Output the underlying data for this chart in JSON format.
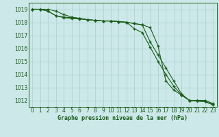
{
  "line1": [
    1019.0,
    1019.0,
    1019.0,
    1018.85,
    1018.6,
    1018.4,
    1018.3,
    1018.2,
    1018.15,
    1018.1,
    1018.1,
    1018.05,
    1018.0,
    1017.9,
    1017.8,
    1016.5,
    1015.5,
    1014.5,
    1013.5,
    1012.5,
    1012.0,
    1012.0,
    1012.0,
    1011.75
  ],
  "line2": [
    1019.0,
    1019.0,
    1018.85,
    1018.5,
    1018.4,
    1018.35,
    1018.3,
    1018.2,
    1018.15,
    1018.1,
    1018.1,
    1018.05,
    1018.0,
    1017.5,
    1017.2,
    1016.1,
    1015.0,
    1014.0,
    1013.1,
    1012.4,
    1012.0,
    1011.95,
    1011.9,
    1011.7
  ],
  "line3": [
    1019.0,
    1019.0,
    1018.85,
    1018.5,
    1018.35,
    1018.3,
    1018.25,
    1018.2,
    1018.15,
    1018.1,
    1018.1,
    1018.05,
    1018.0,
    1017.9,
    1017.8,
    1017.6,
    1016.2,
    1013.5,
    1012.8,
    1012.4,
    1012.0,
    1011.95,
    1011.9,
    1011.65
  ],
  "x": [
    0,
    1,
    2,
    3,
    4,
    5,
    6,
    7,
    8,
    9,
    10,
    11,
    12,
    13,
    14,
    15,
    16,
    17,
    18,
    19,
    20,
    21,
    22,
    23
  ],
  "ylim": [
    1011.5,
    1019.5
  ],
  "yticks": [
    1012,
    1013,
    1014,
    1015,
    1016,
    1017,
    1018,
    1019
  ],
  "xlabel": "Graphe pression niveau de la mer (hPa)",
  "bg_color": "#cce8e8",
  "line_color": "#1a5c1a",
  "grid_color": "#a8d0d0",
  "tick_fontsize": 5.5,
  "xlabel_fontsize": 6.0
}
